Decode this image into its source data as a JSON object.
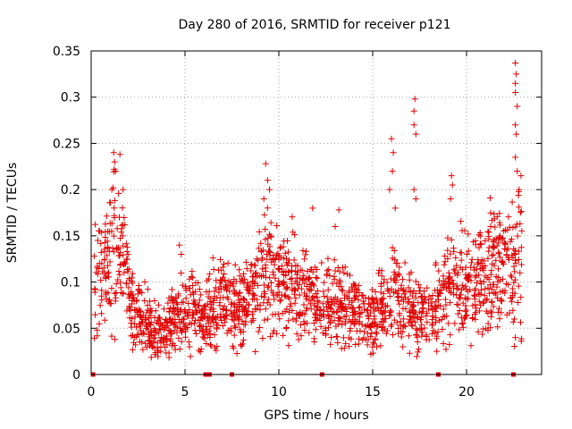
{
  "chart_data": {
    "type": "scatter",
    "title": "Day 280 of 2016, SRMTID for receiver p121",
    "xlabel": "GPS time / hours",
    "ylabel": "SRMTID / TECUs",
    "xlim": [
      0,
      24
    ],
    "ylim": [
      0,
      0.35
    ],
    "x_ticks": [
      0,
      5,
      10,
      15,
      20
    ],
    "x_tick_labels": [
      "0",
      "5",
      "10",
      "15",
      "20"
    ],
    "y_ticks": [
      0,
      0.05,
      0.1,
      0.15,
      0.2,
      0.25,
      0.3,
      0.35
    ],
    "y_tick_labels": [
      "0",
      "0.05",
      "0.1",
      "0.15",
      "0.2",
      "0.25",
      "0.3",
      "0.35"
    ],
    "grid": true,
    "marker": "+",
    "color": "#e00000",
    "zero_markers_x": [
      0.1,
      6.1,
      6.3,
      7.5,
      12.3,
      18.5,
      22.5
    ],
    "trend": [
      [
        0.2,
        0.095
      ],
      [
        0.5,
        0.11
      ],
      [
        0.8,
        0.125
      ],
      [
        1.0,
        0.145
      ],
      [
        1.2,
        0.15
      ],
      [
        1.5,
        0.14
      ],
      [
        1.8,
        0.11
      ],
      [
        2.0,
        0.085
      ],
      [
        2.3,
        0.07
      ],
      [
        2.7,
        0.06
      ],
      [
        3.0,
        0.055
      ],
      [
        3.5,
        0.05
      ],
      [
        4.0,
        0.05
      ],
      [
        4.5,
        0.06
      ],
      [
        5.0,
        0.07
      ],
      [
        5.5,
        0.065
      ],
      [
        6.0,
        0.06
      ],
      [
        6.5,
        0.07
      ],
      [
        7.0,
        0.085
      ],
      [
        7.5,
        0.07
      ],
      [
        8.0,
        0.07
      ],
      [
        8.5,
        0.085
      ],
      [
        9.0,
        0.1
      ],
      [
        9.5,
        0.11
      ],
      [
        10.0,
        0.105
      ],
      [
        10.5,
        0.1
      ],
      [
        11.0,
        0.09
      ],
      [
        11.5,
        0.085
      ],
      [
        12.0,
        0.08
      ],
      [
        12.5,
        0.075
      ],
      [
        13.0,
        0.075
      ],
      [
        13.5,
        0.07
      ],
      [
        14.0,
        0.065
      ],
      [
        14.5,
        0.06
      ],
      [
        15.0,
        0.06
      ],
      [
        15.5,
        0.07
      ],
      [
        16.0,
        0.09
      ],
      [
        16.5,
        0.08
      ],
      [
        17.0,
        0.07
      ],
      [
        17.5,
        0.065
      ],
      [
        18.0,
        0.07
      ],
      [
        18.5,
        0.075
      ],
      [
        19.0,
        0.09
      ],
      [
        19.5,
        0.095
      ],
      [
        20.0,
        0.1
      ],
      [
        20.5,
        0.095
      ],
      [
        21.0,
        0.1
      ],
      [
        21.5,
        0.12
      ],
      [
        22.0,
        0.12
      ],
      [
        22.5,
        0.11
      ],
      [
        22.9,
        0.13
      ]
    ],
    "peaks": [
      [
        1.2,
        0.24
      ],
      [
        1.25,
        0.23
      ],
      [
        1.3,
        0.22
      ],
      [
        1.1,
        0.2
      ],
      [
        1.7,
        0.2
      ],
      [
        1.5,
        0.17
      ],
      [
        4.7,
        0.14
      ],
      [
        4.8,
        0.13
      ],
      [
        9.3,
        0.228
      ],
      [
        9.4,
        0.21
      ],
      [
        9.5,
        0.2
      ],
      [
        9.2,
        0.19
      ],
      [
        11.8,
        0.18
      ],
      [
        13.2,
        0.178
      ],
      [
        13.0,
        0.16
      ],
      [
        16.0,
        0.255
      ],
      [
        16.1,
        0.24
      ],
      [
        16.05,
        0.22
      ],
      [
        15.9,
        0.2
      ],
      [
        16.2,
        0.18
      ],
      [
        17.25,
        0.298
      ],
      [
        17.2,
        0.285
      ],
      [
        17.2,
        0.27
      ],
      [
        17.3,
        0.26
      ],
      [
        17.2,
        0.2
      ],
      [
        17.3,
        0.19
      ],
      [
        19.2,
        0.215
      ],
      [
        19.25,
        0.205
      ],
      [
        19.15,
        0.19
      ],
      [
        22.6,
        0.337
      ],
      [
        22.65,
        0.325
      ],
      [
        22.6,
        0.315
      ],
      [
        22.6,
        0.305
      ],
      [
        22.7,
        0.29
      ],
      [
        22.6,
        0.27
      ],
      [
        22.65,
        0.26
      ],
      [
        22.6,
        0.235
      ],
      [
        22.7,
        0.22
      ],
      [
        22.9,
        0.215
      ],
      [
        22.8,
        0.2
      ],
      [
        22.6,
        0.04
      ],
      [
        22.55,
        0.06
      ]
    ]
  }
}
